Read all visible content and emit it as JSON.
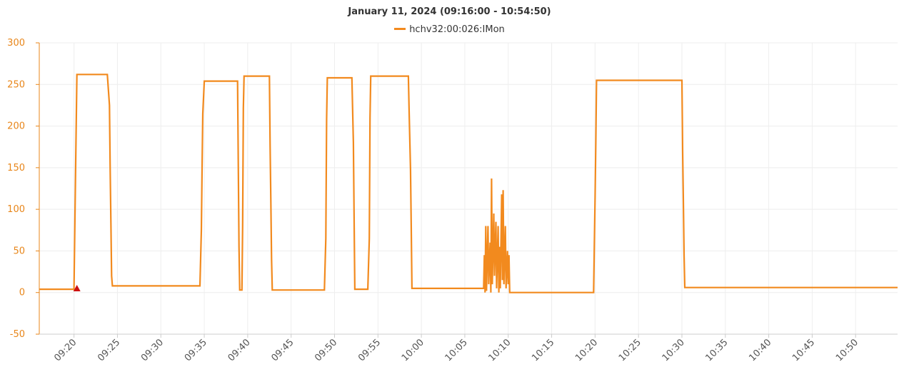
{
  "chart_data": {
    "type": "line",
    "title": "January 11, 2024 (09:16:00 - 10:54:50)",
    "xlabel": "",
    "ylabel": "",
    "x_range": [
      "09:16:00",
      "10:54:50"
    ],
    "ylim": [
      -50,
      300
    ],
    "yticks": [
      -50,
      0,
      50,
      100,
      150,
      200,
      250,
      300
    ],
    "xticks": [
      "09:20",
      "09:25",
      "09:30",
      "09:35",
      "09:40",
      "09:45",
      "09:50",
      "09:55",
      "10:00",
      "10:05",
      "10:10",
      "10:15",
      "10:20",
      "10:25",
      "10:30",
      "10:35",
      "10:40",
      "10:45",
      "10:50"
    ],
    "grid": true,
    "legend_position": "top-center",
    "colors": {
      "series": "#f28a1e",
      "axis_text": "#e8861a",
      "marker": "#cc1111",
      "grid": "#eeeeee"
    },
    "series": [
      {
        "name": "hchv32:00:026:IMon",
        "points": [
          [
            "09:16:00",
            4
          ],
          [
            "09:20:00",
            4
          ],
          [
            "09:20:20",
            262
          ],
          [
            "09:23:50",
            262
          ],
          [
            "09:24:05",
            225
          ],
          [
            "09:24:10",
            148
          ],
          [
            "09:24:15",
            85
          ],
          [
            "09:24:20",
            20
          ],
          [
            "09:24:25",
            8
          ],
          [
            "09:34:30",
            8
          ],
          [
            "09:34:40",
            75
          ],
          [
            "09:34:45",
            150
          ],
          [
            "09:34:50",
            215
          ],
          [
            "09:35:00",
            254
          ],
          [
            "09:38:50",
            254
          ],
          [
            "09:39:00",
            55
          ],
          [
            "09:39:05",
            3
          ],
          [
            "09:39:20",
            3
          ],
          [
            "09:39:25",
            80
          ],
          [
            "09:39:30",
            222
          ],
          [
            "09:39:35",
            260
          ],
          [
            "09:42:30",
            260
          ],
          [
            "09:42:35",
            175
          ],
          [
            "09:42:40",
            110
          ],
          [
            "09:42:45",
            40
          ],
          [
            "09:42:50",
            3
          ],
          [
            "09:48:50",
            3
          ],
          [
            "09:49:00",
            65
          ],
          [
            "09:49:05",
            208
          ],
          [
            "09:49:10",
            258
          ],
          [
            "09:52:00",
            258
          ],
          [
            "09:52:10",
            180
          ],
          [
            "09:52:15",
            90
          ],
          [
            "09:52:20",
            4
          ],
          [
            "09:53:50",
            4
          ],
          [
            "09:54:00",
            65
          ],
          [
            "09:54:05",
            210
          ],
          [
            "09:54:10",
            260
          ],
          [
            "09:58:30",
            260
          ],
          [
            "09:58:35",
            220
          ],
          [
            "09:58:45",
            148
          ],
          [
            "09:58:50",
            80
          ],
          [
            "09:58:55",
            5
          ],
          [
            "10:07:10",
            5
          ],
          [
            "10:07:15",
            45
          ],
          [
            "10:07:20",
            0
          ],
          [
            "10:07:25",
            80
          ],
          [
            "10:07:30",
            2
          ],
          [
            "10:07:40",
            80
          ],
          [
            "10:07:45",
            10
          ],
          [
            "10:07:55",
            60
          ],
          [
            "10:08:00",
            0
          ],
          [
            "10:08:05",
            137
          ],
          [
            "10:08:10",
            10
          ],
          [
            "10:08:20",
            95
          ],
          [
            "10:08:25",
            20
          ],
          [
            "10:08:35",
            85
          ],
          [
            "10:08:40",
            5
          ],
          [
            "10:08:50",
            80
          ],
          [
            "10:08:55",
            0
          ],
          [
            "10:09:00",
            55
          ],
          [
            "10:09:05",
            5
          ],
          [
            "10:09:15",
            118
          ],
          [
            "10:09:20",
            15
          ],
          [
            "10:09:25",
            123
          ],
          [
            "10:09:30",
            10
          ],
          [
            "10:09:40",
            80
          ],
          [
            "10:09:45",
            5
          ],
          [
            "10:09:55",
            50
          ],
          [
            "10:10:00",
            10
          ],
          [
            "10:10:05",
            45
          ],
          [
            "10:10:10",
            0
          ],
          [
            "10:19:50",
            0
          ],
          [
            "10:20:00",
            115
          ],
          [
            "10:20:05",
            180
          ],
          [
            "10:20:10",
            255
          ],
          [
            "10:30:00",
            255
          ],
          [
            "10:30:05",
            170
          ],
          [
            "10:30:10",
            110
          ],
          [
            "10:30:15",
            45
          ],
          [
            "10:30:20",
            6
          ],
          [
            "10:54:50",
            6
          ]
        ]
      }
    ],
    "annotations": [
      {
        "type": "marker",
        "shape": "triangle",
        "time": "09:20:20",
        "value": 4
      }
    ]
  }
}
